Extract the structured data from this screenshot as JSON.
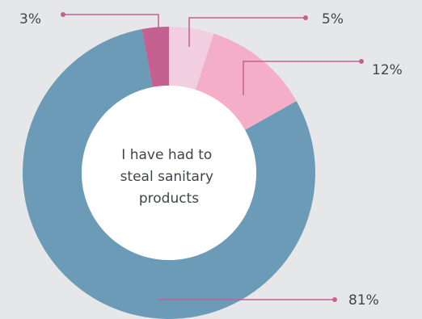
{
  "chart_data": {
    "type": "pie",
    "variant": "donut",
    "center_label": [
      "I have had to",
      "steal sanitary",
      "products"
    ],
    "slices": [
      {
        "label": "5%",
        "value": 5,
        "color": "#f2cfe0"
      },
      {
        "label": "12%",
        "value": 12,
        "color": "#f4aec8"
      },
      {
        "label": "81%",
        "value": 81,
        "color": "#6b9bb6"
      },
      {
        "label": "3%",
        "value": 3,
        "color": "#c46190"
      }
    ],
    "leader_color": "#c46190",
    "start_angle_deg": 0,
    "direction": "clockwise"
  }
}
